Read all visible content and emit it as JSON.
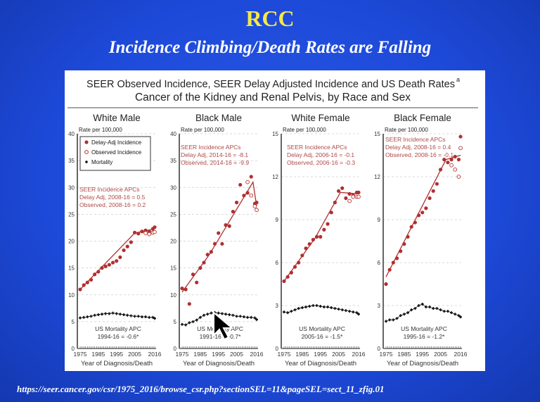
{
  "slide": {
    "title": "RCC",
    "subtitle": "Incidence Climbing/Death Rates are Falling",
    "footer_url": "https://seer.cancer.gov/csr/1975_2016/browse_csr.php?sectionSEL=11&pageSEL=sect_11_zfig.01",
    "colors": {
      "background": "#1d49d8",
      "title": "#f5e84a",
      "incidence": "#b03030",
      "mortality": "#111111"
    }
  },
  "chart_data": {
    "type": "scatter",
    "title": "SEER Observed Incidence, SEER Delay Adjusted Incidence and US Death Rates",
    "title_superscript": "a",
    "subtitle": "Cancer of the Kidney and Renal Pelvis, by Race and Sex",
    "xlabel": "Year of Diagnosis/Death",
    "ylabel": "Rate per 100,000",
    "x_ticks": [
      "1975",
      "1985",
      "1995",
      "2005",
      "2016"
    ],
    "xlim": [
      1975,
      2016
    ],
    "grid": "dashed horizontal",
    "legend": {
      "placement": "top-left of first panel",
      "entries": [
        "Delay-Adj Incidence",
        "Observed Incidence",
        "Mortality"
      ]
    },
    "x": [
      1975,
      1977,
      1979,
      1981,
      1983,
      1985,
      1987,
      1989,
      1991,
      1993,
      1995,
      1997,
      1999,
      2001,
      2003,
      2005,
      2007,
      2009,
      2011,
      2013,
      2015,
      2016
    ],
    "observed_x": [
      2011,
      2013,
      2015,
      2016
    ],
    "panels": [
      {
        "title": "White Male",
        "ylim": [
          0,
          40
        ],
        "y_ticks": [
          "0",
          "5",
          "10",
          "15",
          "20",
          "25",
          "30",
          "35",
          "40"
        ],
        "delay_adj": [
          11,
          11.8,
          12.3,
          12.8,
          13.8,
          14.3,
          15,
          15.3,
          15.6,
          16,
          16.3,
          17,
          18.3,
          19,
          19.8,
          21.6,
          21.4,
          21.8,
          22,
          21.8,
          22.3,
          22.6
        ],
        "observed": [
          21.5,
          21.3,
          21.6,
          21.7
        ],
        "mortality": [
          5.7,
          5.8,
          5.9,
          6.0,
          6.2,
          6.3,
          6.4,
          6.5,
          6.5,
          6.6,
          6.5,
          6.4,
          6.3,
          6.2,
          6.1,
          6.0,
          6.0,
          5.9,
          5.9,
          5.8,
          5.8,
          5.6
        ],
        "fit": [
          [
            1975,
            11
          ],
          [
            2005,
            21.5
          ],
          [
            2016,
            22.3
          ]
        ],
        "incidence_apc": [
          "SEER Incidence APCs",
          "Delay Adj, 2008-16 = 0.5",
          "Observed, 2008-16 = 0.2"
        ],
        "mortality_apc": [
          "US Mortality APC",
          "1994-16 = -0.6*"
        ]
      },
      {
        "title": "Black Male",
        "ylim": [
          0,
          40
        ],
        "y_ticks": [
          "0",
          "5",
          "10",
          "15",
          "20",
          "25",
          "30",
          "35",
          "40"
        ],
        "delay_adj": [
          11.2,
          11,
          8.3,
          13.8,
          12.3,
          15,
          16,
          17.5,
          18,
          19.5,
          21.5,
          19.5,
          23,
          22.8,
          25.5,
          27.2,
          30.5,
          28.5,
          29,
          32,
          27,
          27.2
        ],
        "observed": [
          31,
          28.5,
          26.5,
          25.8
        ],
        "mortality": [
          4.5,
          4.4,
          4.8,
          5.0,
          5.3,
          5.8,
          6.2,
          6.4,
          6.6,
          6.7,
          6.6,
          6.5,
          6.4,
          6.3,
          6.2,
          6.0,
          6.0,
          5.9,
          5.8,
          5.8,
          5.7,
          5.4
        ],
        "fit": [
          [
            1975,
            10.5
          ],
          [
            1990,
            17.5
          ],
          [
            2014,
            31
          ],
          [
            2016,
            26.5
          ]
        ],
        "incidence_apc": [
          "SEER Incidence APCs",
          "Delay Adj, 2014-16 = -8.1",
          "Observed, 2014-16 = -9.9"
        ],
        "mortality_apc": [
          "US Mortality APC",
          "1991-16 = -0.7*"
        ]
      },
      {
        "title": "White Female",
        "ylim": [
          0,
          15
        ],
        "y_ticks": [
          "0",
          "3",
          "6",
          "9",
          "12",
          "15"
        ],
        "delay_adj": [
          4.7,
          5.0,
          5.3,
          5.7,
          6.0,
          6.5,
          7.0,
          7.3,
          7.6,
          7.8,
          7.8,
          8.3,
          8.7,
          9.5,
          10.2,
          11.0,
          11.2,
          10.5,
          10.8,
          10.7,
          10.9,
          10.9
        ],
        "observed": [
          10.3,
          10.6,
          10.6,
          10.6
        ],
        "mortality": [
          2.55,
          2.5,
          2.6,
          2.7,
          2.8,
          2.85,
          2.9,
          2.95,
          3.0,
          3.0,
          2.95,
          2.9,
          2.9,
          2.85,
          2.8,
          2.75,
          2.7,
          2.65,
          2.6,
          2.55,
          2.5,
          2.4
        ],
        "fit": [
          [
            1975,
            4.7
          ],
          [
            1992,
            7.7
          ],
          [
            2006,
            10.9
          ],
          [
            2016,
            10.8
          ]
        ],
        "incidence_apc": [
          "SEER Incidence APCs",
          "Delay Adj, 2006-16 = -0.1",
          "Observed, 2006-16 = -0.3"
        ],
        "mortality_apc": [
          "US Mortality APC",
          "2005-16 = -1.5*"
        ]
      },
      {
        "title": "Black Female",
        "ylim": [
          0,
          15
        ],
        "y_ticks": [
          "0",
          "3",
          "6",
          "9",
          "12",
          "15"
        ],
        "delay_adj": [
          4.5,
          5.5,
          6.0,
          6.3,
          6.8,
          7.3,
          7.8,
          8.5,
          8.8,
          9.3,
          9.5,
          9.8,
          10.5,
          11,
          11.5,
          12.5,
          13.2,
          13.0,
          13.2,
          13.4,
          13.2,
          14.8
        ],
        "observed": [
          12.8,
          12.5,
          12.0,
          14.0
        ],
        "mortality": [
          1.9,
          2.0,
          2.0,
          2.1,
          2.3,
          2.4,
          2.5,
          2.7,
          2.8,
          3.0,
          3.1,
          2.9,
          2.9,
          2.8,
          2.8,
          2.7,
          2.6,
          2.6,
          2.5,
          2.4,
          2.3,
          2.2
        ],
        "fit": [
          [
            1975,
            5
          ],
          [
            2008,
            13.2
          ],
          [
            2016,
            13.5
          ]
        ],
        "incidence_apc": [
          "SEER Incidence APCs",
          "Delay Adj, 2008-16 = 0.4",
          "Observed, 2008-16 = -0.1"
        ],
        "mortality_apc": [
          "US Mortality APC",
          "1995-16 = -1.2*"
        ]
      }
    ]
  }
}
